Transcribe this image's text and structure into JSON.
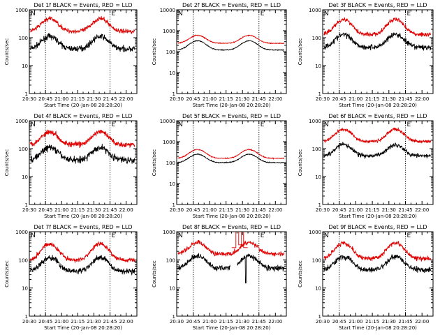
{
  "page": {
    "background": "#ffffff"
  },
  "colors": {
    "events": "#000000",
    "lld": "#e00000",
    "axis": "#000000"
  },
  "chart_data": [
    {
      "type": "line",
      "title": "Det 1f BLACK = Events, RED = LLD",
      "xlabel": "Start Time (20-Jan-08 20:28:20)",
      "ylabel": "Counts/sec",
      "yscale": "log",
      "ylim": [
        1,
        1000
      ],
      "xlim": [
        "20:30",
        "22:10"
      ],
      "xticks": [
        "20:30",
        "20:45",
        "21:00",
        "21:15",
        "21:30",
        "21:45",
        "22:00"
      ],
      "yticks": [
        "1",
        "10",
        "100",
        "1000"
      ],
      "vlines": [
        "20:45",
        "21:45"
      ],
      "corner_marks": [
        "N",
        "E"
      ],
      "series": [
        {
          "name": "Events",
          "color": "#000000",
          "baseline": 40,
          "peak": 110,
          "noise": 0.05
        },
        {
          "name": "LLD",
          "color": "#e00000",
          "baseline": 170,
          "peak": 480,
          "noise": 0.04
        }
      ]
    },
    {
      "type": "line",
      "title": "Det 2f BLACK = Events, RED = LLD",
      "xlabel": "Start Time (20-Jan-08 20:28:20)",
      "ylabel": "Counts/sec",
      "yscale": "log",
      "ylim": [
        1,
        10000
      ],
      "xlim": [
        "20:30",
        "22:10"
      ],
      "xticks": [
        "20:30",
        "20:45",
        "21:00",
        "21:15",
        "21:30",
        "21:45",
        "22:00"
      ],
      "yticks": [
        "1",
        "10",
        "100",
        "1000",
        "10000"
      ],
      "vlines": [
        "20:45",
        "21:45"
      ],
      "corner_marks": [
        "N",
        "E"
      ],
      "series": [
        {
          "name": "Events",
          "color": "#000000",
          "baseline": 120,
          "peak": 330,
          "noise": 0.01
        },
        {
          "name": "LLD",
          "color": "#e00000",
          "baseline": 250,
          "peak": 600,
          "noise": 0.01
        }
      ]
    },
    {
      "type": "line",
      "title": "Det 3f BLACK = Events, RED = LLD",
      "xlabel": "Start Time (20-Jan-08 20:28:20)",
      "ylabel": "Counts/sec",
      "yscale": "log",
      "ylim": [
        1,
        1000
      ],
      "xlim": [
        "20:30",
        "22:10"
      ],
      "xticks": [
        "20:30",
        "20:45",
        "21:00",
        "21:15",
        "21:30",
        "21:45",
        "22:00"
      ],
      "yticks": [
        "1",
        "10",
        "100",
        "1000"
      ],
      "vlines": [
        "20:45",
        "21:45"
      ],
      "corner_marks": [
        "N",
        "E"
      ],
      "series": [
        {
          "name": "Events",
          "color": "#000000",
          "baseline": 45,
          "peak": 130,
          "noise": 0.05
        },
        {
          "name": "LLD",
          "color": "#e00000",
          "baseline": 130,
          "peak": 450,
          "noise": 0.04
        }
      ]
    },
    {
      "type": "line",
      "title": "Det 4f BLACK = Events, RED = LLD",
      "xlabel": "Start Time (20-Jan-08 20:28:20)",
      "ylabel": "Counts/sec",
      "yscale": "log",
      "ylim": [
        1,
        1000
      ],
      "xlim": [
        "20:30",
        "22:10"
      ],
      "xticks": [
        "20:30",
        "20:45",
        "21:00",
        "21:15",
        "21:30",
        "21:45",
        "22:00"
      ],
      "yticks": [
        "1",
        "10",
        "100",
        "1000"
      ],
      "vlines": [
        "20:45",
        "21:45"
      ],
      "corner_marks": [
        "N",
        "E"
      ],
      "series": [
        {
          "name": "Events",
          "color": "#000000",
          "baseline": 40,
          "peak": 110,
          "noise": 0.06
        },
        {
          "name": "LLD",
          "color": "#e00000",
          "baseline": 140,
          "peak": 400,
          "noise": 0.05
        }
      ]
    },
    {
      "type": "line",
      "title": "Det 5f BLACK = Events, RED = LLD",
      "xlabel": "Start Time (20-Jan-08 20:28:20)",
      "ylabel": "Counts/sec",
      "yscale": "log",
      "ylim": [
        1,
        10000
      ],
      "xlim": [
        "20:30",
        "22:10"
      ],
      "xticks": [
        "20:30",
        "20:45",
        "21:00",
        "21:15",
        "21:30",
        "21:45",
        "22:00"
      ],
      "yticks": [
        "1",
        "10",
        "100",
        "1000",
        "10000"
      ],
      "vlines": [
        "20:45",
        "21:45"
      ],
      "corner_marks": [
        "N",
        "E"
      ],
      "series": [
        {
          "name": "Events",
          "color": "#000000",
          "baseline": 100,
          "peak": 250,
          "noise": 0.01
        },
        {
          "name": "LLD",
          "color": "#e00000",
          "baseline": 160,
          "peak": 420,
          "noise": 0.01
        }
      ]
    },
    {
      "type": "line",
      "title": "Det 6f BLACK = Events, RED = LLD",
      "xlabel": "Start Time (20-Jan-08 20:28:20)",
      "ylabel": "Counts/sec",
      "yscale": "log",
      "ylim": [
        1,
        1000
      ],
      "xlim": [
        "20:30",
        "22:10"
      ],
      "xticks": [
        "20:30",
        "20:45",
        "21:00",
        "21:15",
        "21:30",
        "21:45",
        "22:00"
      ],
      "yticks": [
        "1",
        "10",
        "100",
        "1000"
      ],
      "vlines": [
        "20:45",
        "21:45"
      ],
      "corner_marks": [
        "N",
        "E"
      ],
      "series": [
        {
          "name": "Events",
          "color": "#000000",
          "baseline": 55,
          "peak": 140,
          "noise": 0.04
        },
        {
          "name": "LLD",
          "color": "#e00000",
          "baseline": 180,
          "peak": 500,
          "noise": 0.03
        }
      ]
    },
    {
      "type": "line",
      "title": "Det 7f BLACK = Events, RED = LLD",
      "xlabel": "Start Time (20-Jan-08 20:28:20)",
      "ylabel": "Counts/sec",
      "yscale": "log",
      "ylim": [
        1,
        1000
      ],
      "xlim": [
        "20:30",
        "22:10"
      ],
      "xticks": [
        "20:30",
        "20:45",
        "21:00",
        "21:15",
        "21:30",
        "21:45",
        "22:00"
      ],
      "yticks": [
        "1",
        "10",
        "100",
        "1000"
      ],
      "vlines": [
        "20:45",
        "21:45"
      ],
      "corner_marks": [
        "N",
        "E"
      ],
      "series": [
        {
          "name": "Events",
          "color": "#000000",
          "baseline": 40,
          "peak": 120,
          "noise": 0.05
        },
        {
          "name": "LLD",
          "color": "#e00000",
          "baseline": 100,
          "peak": 370,
          "noise": 0.04
        }
      ]
    },
    {
      "type": "line",
      "title": "Det 8f BLACK = Events, RED = LLD",
      "xlabel": "Start Time (20-Jan-08 20:28:20)",
      "ylabel": "Counts/sec",
      "yscale": "log",
      "ylim": [
        1,
        1000
      ],
      "xlim": [
        "20:30",
        "22:10"
      ],
      "xticks": [
        "20:30",
        "20:45",
        "21:00",
        "21:15",
        "21:30",
        "21:45",
        "22:00"
      ],
      "yticks": [
        "1",
        "10",
        "100",
        "1000"
      ],
      "vlines": [
        "20:45",
        "21:45"
      ],
      "corner_marks": [
        "N",
        "E"
      ],
      "annotations": [
        "LLD spike near 21:25-21:30 off scale; Events dip to ~15 near 21:33"
      ],
      "series": [
        {
          "name": "Events",
          "color": "#000000",
          "baseline": 50,
          "peak": 140,
          "noise": 0.05,
          "gap": [
            "21:19",
            "21:25"
          ],
          "dip": {
            "at": "21:33",
            "value": 15
          }
        },
        {
          "name": "LLD",
          "color": "#e00000",
          "baseline": 160,
          "peak": 420,
          "noise": 0.04,
          "spike": [
            "21:24",
            "21:31"
          ]
        }
      ]
    },
    {
      "type": "line",
      "title": "Det 9f BLACK = Events, RED = LLD",
      "xlabel": "Start Time (20-Jan-08 20:28:20)",
      "ylabel": "Counts/sec",
      "yscale": "log",
      "ylim": [
        1,
        1000
      ],
      "xlim": [
        "20:30",
        "22:10"
      ],
      "xticks": [
        "20:30",
        "20:45",
        "21:00",
        "21:15",
        "21:30",
        "21:45",
        "22:00"
      ],
      "yticks": [
        "1",
        "10",
        "100",
        "1000"
      ],
      "vlines": [
        "20:45",
        "21:45"
      ],
      "corner_marks": [
        "N",
        "E"
      ],
      "series": [
        {
          "name": "Events",
          "color": "#000000",
          "baseline": 45,
          "peak": 130,
          "noise": 0.05
        },
        {
          "name": "LLD",
          "color": "#e00000",
          "baseline": 110,
          "peak": 400,
          "noise": 0.04
        }
      ]
    }
  ]
}
